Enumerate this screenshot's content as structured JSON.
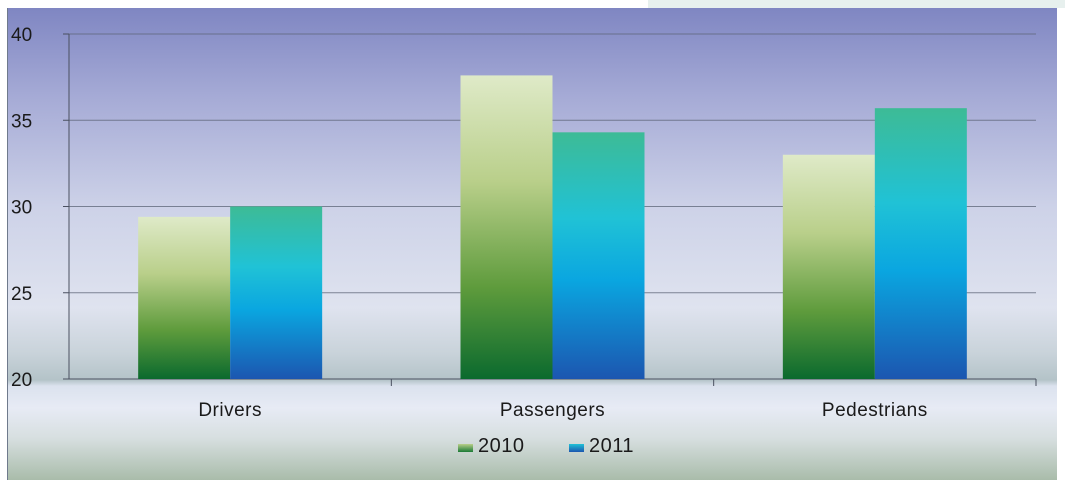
{
  "chart_data": {
    "type": "bar",
    "categories": [
      "Drivers",
      "Passengers",
      "Pedestrians"
    ],
    "series": [
      {
        "name": "2010",
        "values": [
          29.4,
          37.6,
          33.0
        ]
      },
      {
        "name": "2011",
        "values": [
          30.0,
          34.3,
          35.7
        ]
      }
    ],
    "ylim": [
      20,
      40
    ],
    "yticks": [
      "20",
      "25",
      "30",
      "35",
      "40"
    ],
    "grid": true,
    "legend": "bottom",
    "colors": {
      "2010": {
        "top": "#dde9c4",
        "bottom": "#0e6b2c"
      },
      "2011": {
        "top": "#3fbf9a",
        "mid": "#00b6e0",
        "bottom": "#1a5fb5"
      }
    }
  }
}
